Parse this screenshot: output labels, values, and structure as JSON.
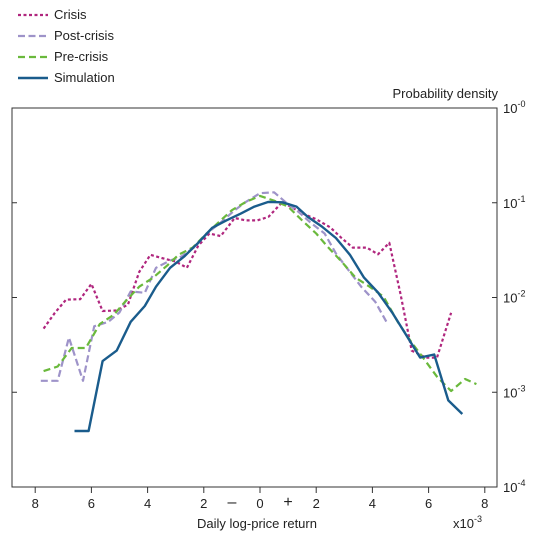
{
  "chart_data": {
    "type": "line",
    "ylabel": "Probability density",
    "xlabel": "Daily log-price return",
    "x_multiplier_label": "x10",
    "x_multiplier_exponent": "-3",
    "y_scale": "log10",
    "ylim": [
      0.0001,
      1
    ],
    "xlim": [
      -8.7,
      8.7
    ],
    "grid": false,
    "legend_position": "top-left, outside plot",
    "x_ticks": [
      {
        "value": -8,
        "label": "8"
      },
      {
        "value": -6,
        "label": "6"
      },
      {
        "value": -4,
        "label": "4"
      },
      {
        "value": -2,
        "label": "2"
      },
      {
        "value": 0,
        "label": "0"
      },
      {
        "value": 2,
        "label": "2"
      },
      {
        "value": 4,
        "label": "4"
      },
      {
        "value": 6,
        "label": "6"
      },
      {
        "value": 8,
        "label": "8"
      }
    ],
    "sign_labels": [
      {
        "value": -1,
        "label": "–"
      },
      {
        "value": 1,
        "label": "+"
      }
    ],
    "y_ticks": [
      {
        "value": 1,
        "base": "10",
        "exp": "-0"
      },
      {
        "value": 0.1,
        "base": "10",
        "exp": "-1"
      },
      {
        "value": 0.01,
        "base": "10",
        "exp": "-2"
      },
      {
        "value": 0.001,
        "base": "10",
        "exp": "-3"
      },
      {
        "value": 0.0001,
        "base": "10",
        "exp": "-4"
      }
    ],
    "series": [
      {
        "name": "Crisis",
        "color": "#b0267e",
        "dash": "3,2.5",
        "points": [
          [
            -7.7,
            0.0047
          ],
          [
            -7.3,
            0.0069
          ],
          [
            -6.9,
            0.0095
          ],
          [
            -6.4,
            0.0096
          ],
          [
            -6.0,
            0.0139
          ],
          [
            -5.6,
            0.0072
          ],
          [
            -5.1,
            0.0073
          ],
          [
            -4.7,
            0.0084
          ],
          [
            -4.3,
            0.0186
          ],
          [
            -3.9,
            0.0282
          ],
          [
            -3.5,
            0.0261
          ],
          [
            -3.0,
            0.024
          ],
          [
            -2.6,
            0.0206
          ],
          [
            -2.2,
            0.0351
          ],
          [
            -1.8,
            0.0474
          ],
          [
            -1.4,
            0.0445
          ],
          [
            -0.9,
            0.0691
          ],
          [
            -0.5,
            0.0652
          ],
          [
            -0.1,
            0.0652
          ],
          [
            0.3,
            0.0709
          ],
          [
            0.8,
            0.102
          ],
          [
            1.2,
            0.087
          ],
          [
            1.6,
            0.0752
          ],
          [
            2.0,
            0.0671
          ],
          [
            2.5,
            0.055
          ],
          [
            2.9,
            0.0425
          ],
          [
            3.3,
            0.0336
          ],
          [
            3.8,
            0.0336
          ],
          [
            4.2,
            0.0286
          ],
          [
            4.6,
            0.0378
          ],
          [
            5.0,
            0.0109
          ],
          [
            5.4,
            0.00275
          ],
          [
            5.9,
            0.00232
          ],
          [
            6.3,
            0.00232
          ],
          [
            6.8,
            0.0069
          ]
        ]
      },
      {
        "name": "Post-crisis",
        "color": "#9e93c9",
        "dash": "7,3.5",
        "points": [
          [
            -7.8,
            0.00132
          ],
          [
            -7.2,
            0.00132
          ],
          [
            -6.8,
            0.00377
          ],
          [
            -6.3,
            0.00132
          ],
          [
            -5.9,
            0.00497
          ],
          [
            -5.4,
            0.00554
          ],
          [
            -5.0,
            0.00697
          ],
          [
            -4.6,
            0.0116
          ],
          [
            -4.1,
            0.0112
          ],
          [
            -3.7,
            0.0206
          ],
          [
            -3.2,
            0.0246
          ],
          [
            -2.8,
            0.027
          ],
          [
            -2.3,
            0.0345
          ],
          [
            -1.9,
            0.0474
          ],
          [
            -1.4,
            0.0617
          ],
          [
            -0.9,
            0.0834
          ],
          [
            -0.5,
            0.102
          ],
          [
            0.0,
            0.126
          ],
          [
            0.5,
            0.129
          ],
          [
            0.9,
            0.102
          ],
          [
            1.4,
            0.0789
          ],
          [
            1.8,
            0.0616
          ],
          [
            2.3,
            0.0474
          ],
          [
            2.7,
            0.0292
          ],
          [
            3.2,
            0.0186
          ],
          [
            3.6,
            0.013
          ],
          [
            4.1,
            0.00904
          ],
          [
            4.5,
            0.00554
          ]
        ]
      },
      {
        "name": "Pre-crisis",
        "color": "#6ab93c",
        "dash": "7,4",
        "points": [
          [
            -7.7,
            0.00167
          ],
          [
            -7.2,
            0.00187
          ],
          [
            -6.7,
            0.00293
          ],
          [
            -6.2,
            0.00293
          ],
          [
            -5.7,
            0.00525
          ],
          [
            -5.2,
            0.00659
          ],
          [
            -4.8,
            0.00904
          ],
          [
            -4.3,
            0.013
          ],
          [
            -3.8,
            0.0162
          ],
          [
            -3.3,
            0.0218
          ],
          [
            -2.9,
            0.0282
          ],
          [
            -2.4,
            0.0336
          ],
          [
            -1.9,
            0.0474
          ],
          [
            -1.4,
            0.0652
          ],
          [
            -1.0,
            0.0834
          ],
          [
            -0.5,
            0.102
          ],
          [
            0.0,
            0.118
          ],
          [
            0.5,
            0.105
          ],
          [
            1.0,
            0.0911
          ],
          [
            1.5,
            0.0652
          ],
          [
            2.0,
            0.0474
          ],
          [
            2.4,
            0.0345
          ],
          [
            2.9,
            0.024
          ],
          [
            3.4,
            0.0162
          ],
          [
            3.9,
            0.013
          ],
          [
            4.4,
            0.0102
          ],
          [
            4.9,
            0.00554
          ],
          [
            5.4,
            0.00334
          ],
          [
            5.8,
            0.00232
          ],
          [
            6.3,
            0.00146
          ],
          [
            6.8,
            0.00103
          ],
          [
            7.3,
            0.00138
          ],
          [
            7.7,
            0.00122
          ]
        ]
      },
      {
        "name": "Simulation",
        "color": "#1a5c8c",
        "dash": "",
        "points": [
          [
            -6.6,
            0.00039
          ],
          [
            -6.1,
            0.00039
          ],
          [
            -5.6,
            0.00213
          ],
          [
            -5.1,
            0.00275
          ],
          [
            -4.6,
            0.00554
          ],
          [
            -4.1,
            0.00814
          ],
          [
            -3.7,
            0.013
          ],
          [
            -3.2,
            0.0206
          ],
          [
            -2.7,
            0.027
          ],
          [
            -2.2,
            0.0378
          ],
          [
            -1.7,
            0.0544
          ],
          [
            -1.2,
            0.0652
          ],
          [
            -0.7,
            0.0765
          ],
          [
            -0.2,
            0.0911
          ],
          [
            0.3,
            0.102
          ],
          [
            0.8,
            0.101
          ],
          [
            1.3,
            0.0911
          ],
          [
            1.7,
            0.0709
          ],
          [
            2.2,
            0.0562
          ],
          [
            2.7,
            0.0425
          ],
          [
            3.2,
            0.0282
          ],
          [
            3.7,
            0.0162
          ],
          [
            4.2,
            0.0113
          ],
          [
            4.7,
            0.00697
          ],
          [
            5.2,
            0.00403
          ],
          [
            5.7,
            0.00232
          ],
          [
            6.2,
            0.0025
          ],
          [
            6.7,
            0.00082
          ],
          [
            7.2,
            0.00059
          ]
        ]
      }
    ]
  }
}
